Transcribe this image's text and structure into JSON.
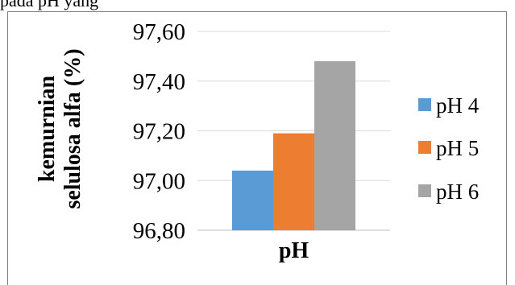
{
  "top_text": "pada pH yang",
  "chart_data": {
    "type": "bar",
    "categories": [
      "pH"
    ],
    "series": [
      {
        "name": "pH 4",
        "values": [
          97.04
        ],
        "color": "#5b9bd5"
      },
      {
        "name": "pH 5",
        "values": [
          97.19
        ],
        "color": "#ed7d31"
      },
      {
        "name": "pH 6",
        "values": [
          97.48
        ],
        "color": "#a5a5a5"
      }
    ],
    "ylim": [
      96.8,
      97.6
    ],
    "yticks": [
      "96,80",
      "97,00",
      "97,20",
      "97,40",
      "97,60"
    ],
    "xlabel": "pH",
    "ylabel": [
      "kemurnian",
      "selulosa alfa (%)"
    ],
    "grid": true,
    "legend_position": "right"
  }
}
